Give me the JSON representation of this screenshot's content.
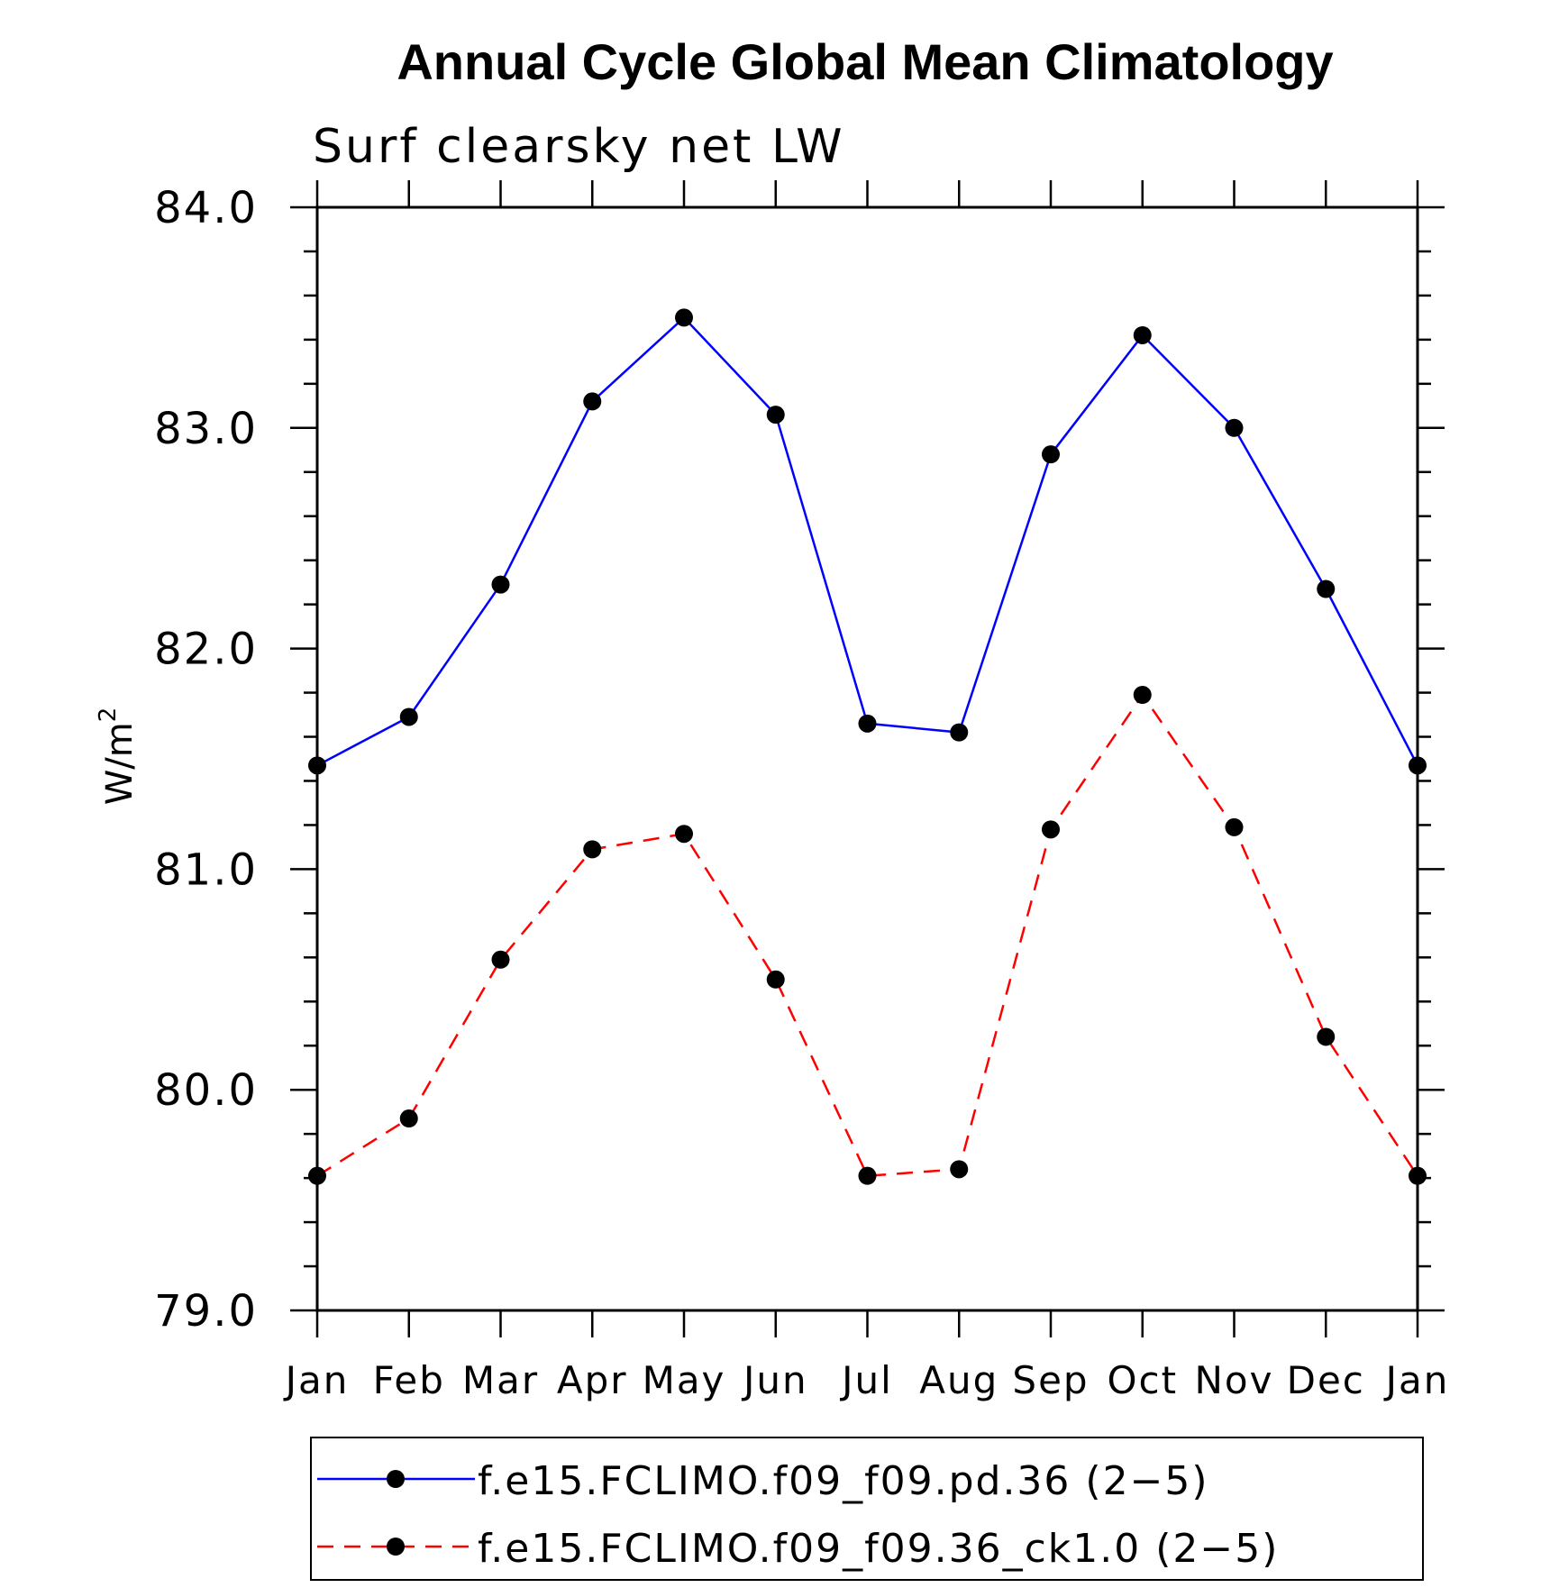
{
  "chart_data": {
    "type": "line",
    "title": "Annual Cycle Global Mean Climatology",
    "subtitle": "Surf clearsky net LW",
    "ylabel": "W/m",
    "ylabel_superscript": "2",
    "xlabel": "",
    "ylim": [
      79.0,
      84.0
    ],
    "yticks": [
      "79.0",
      "80.0",
      "81.0",
      "82.0",
      "83.0",
      "84.0"
    ],
    "categories": [
      "Jan",
      "Feb",
      "Mar",
      "Apr",
      "May",
      "Jun",
      "Jul",
      "Aug",
      "Sep",
      "Oct",
      "Nov",
      "Dec",
      "Jan"
    ],
    "legend_position": "bottom",
    "grid": false,
    "series": [
      {
        "name": "f.e15.FCLIMO.f09_f09.pd.36 (2−5)",
        "color": "#0000ff",
        "line_style": "solid",
        "marker": "filled-circle",
        "values": [
          81.47,
          81.69,
          82.29,
          83.12,
          83.5,
          83.06,
          81.66,
          81.62,
          82.88,
          83.42,
          83.0,
          82.27,
          81.47
        ]
      },
      {
        "name": "f.e15.FCLIMO.f09_f09.36_ck1.0 (2−5)",
        "color": "#ff0000",
        "line_style": "dashed",
        "marker": "filled-circle",
        "values": [
          79.61,
          79.87,
          80.59,
          81.09,
          81.16,
          80.5,
          79.61,
          79.64,
          81.18,
          81.79,
          81.19,
          80.24,
          79.61
        ]
      }
    ]
  }
}
